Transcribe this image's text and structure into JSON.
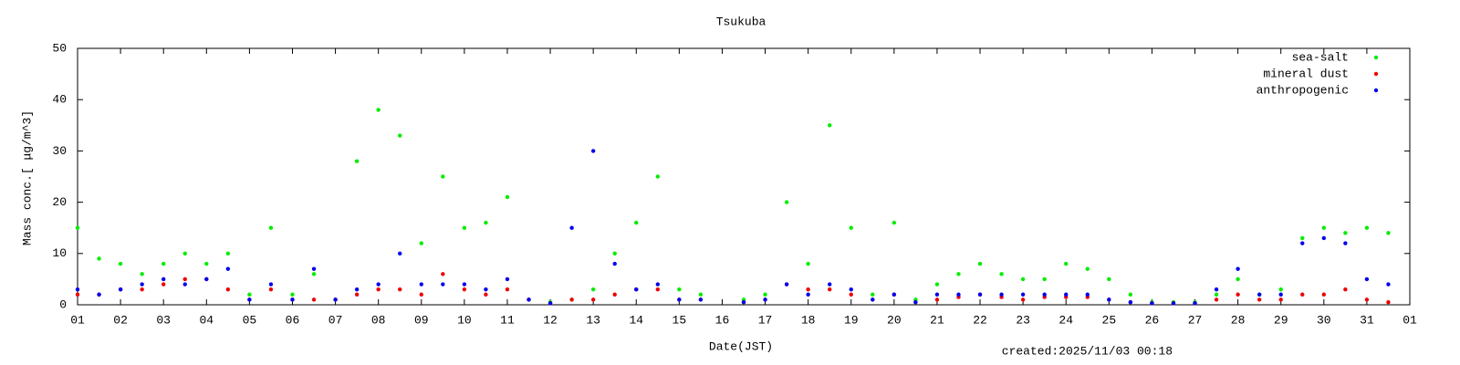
{
  "chart_data": {
    "type": "scatter",
    "title": "Tsukuba",
    "x_label": "Date(JST)",
    "y_label": "Mass conc.[ μg/m^3]",
    "footnote": "created:2025/11/03 00:18",
    "xlim": [
      1,
      32
    ],
    "ylim": [
      0,
      50
    ],
    "xticks": [
      {
        "value": 1,
        "label": "01"
      },
      {
        "value": 2,
        "label": "02"
      },
      {
        "value": 3,
        "label": "03"
      },
      {
        "value": 4,
        "label": "04"
      },
      {
        "value": 5,
        "label": "05"
      },
      {
        "value": 6,
        "label": "06"
      },
      {
        "value": 7,
        "label": "07"
      },
      {
        "value": 8,
        "label": "08"
      },
      {
        "value": 9,
        "label": "09"
      },
      10,
      11,
      12,
      13,
      14,
      15,
      16,
      17,
      18,
      19,
      20,
      21,
      22,
      23,
      24,
      25,
      26,
      27,
      28,
      29,
      30,
      31,
      {
        "value": 32,
        "label": "01"
      }
    ],
    "yticks": [
      0,
      10,
      20,
      30,
      40,
      50
    ],
    "legend": "upper right",
    "x": [
      1.0,
      1.5,
      2.0,
      2.5,
      3.0,
      3.5,
      4.0,
      4.5,
      5.0,
      5.5,
      6.0,
      6.5,
      7.0,
      7.5,
      8.0,
      8.5,
      9.0,
      9.5,
      10.0,
      10.5,
      11.0,
      11.5,
      12.0,
      12.5,
      13.0,
      13.5,
      14.0,
      14.5,
      15.0,
      15.5,
      16.0,
      16.5,
      17.0,
      17.5,
      18.0,
      18.5,
      19.0,
      19.5,
      20.0,
      20.5,
      21.0,
      21.5,
      22.0,
      22.5,
      23.0,
      23.5,
      24.0,
      24.5,
      25.0,
      25.5,
      26.0,
      26.5,
      27.0,
      27.5,
      28.0,
      28.5,
      29.0,
      29.5,
      30.0,
      30.5,
      31.0,
      31.5
    ],
    "series": [
      {
        "name": "sea-salt",
        "color": "#00ee00",
        "values": [
          15,
          9,
          8,
          6,
          8,
          10,
          8,
          10,
          2,
          15,
          2,
          6,
          1,
          28,
          38,
          33,
          12,
          25,
          15,
          16,
          21,
          1,
          0.5,
          1,
          3,
          10,
          16,
          25,
          3,
          2,
          null,
          1,
          2,
          20,
          8,
          35,
          15,
          2,
          16,
          1,
          4,
          6,
          8,
          6,
          5,
          5,
          8,
          7,
          5,
          2,
          0.5,
          0.5,
          0.5,
          2,
          5,
          2,
          3,
          13,
          15,
          14,
          15,
          14
        ]
      },
      {
        "name": "mineral dust",
        "color": "#ee0000",
        "values": [
          2,
          2,
          3,
          3,
          4,
          5,
          5,
          3,
          1,
          3,
          1,
          1,
          1,
          2,
          3,
          3,
          2,
          6,
          3,
          2,
          3,
          1,
          0.3,
          1,
          1,
          2,
          3,
          3,
          1,
          1,
          null,
          0.5,
          1,
          4,
          3,
          3,
          2,
          1,
          2,
          0.5,
          1,
          1.5,
          2,
          1.5,
          1,
          1.5,
          1.5,
          1.5,
          1,
          0.5,
          0.3,
          0.3,
          0.3,
          1,
          2,
          1,
          1,
          2,
          2,
          3,
          1,
          0.5
        ]
      },
      {
        "name": "anthropogenic",
        "color": "#0000ee",
        "values": [
          3,
          2,
          3,
          4,
          5,
          4,
          5,
          7,
          1,
          4,
          1,
          7,
          1,
          3,
          4,
          10,
          4,
          4,
          4,
          3,
          5,
          1,
          0.3,
          15,
          30,
          8,
          3,
          4,
          1,
          1,
          null,
          0.5,
          1,
          4,
          2,
          4,
          3,
          1,
          2,
          0.5,
          2,
          2,
          2,
          2,
          2,
          2,
          2,
          2,
          1,
          0.5,
          0.3,
          0.3,
          0.3,
          3,
          7,
          2,
          2,
          12,
          13,
          12,
          5,
          4
        ]
      }
    ]
  }
}
